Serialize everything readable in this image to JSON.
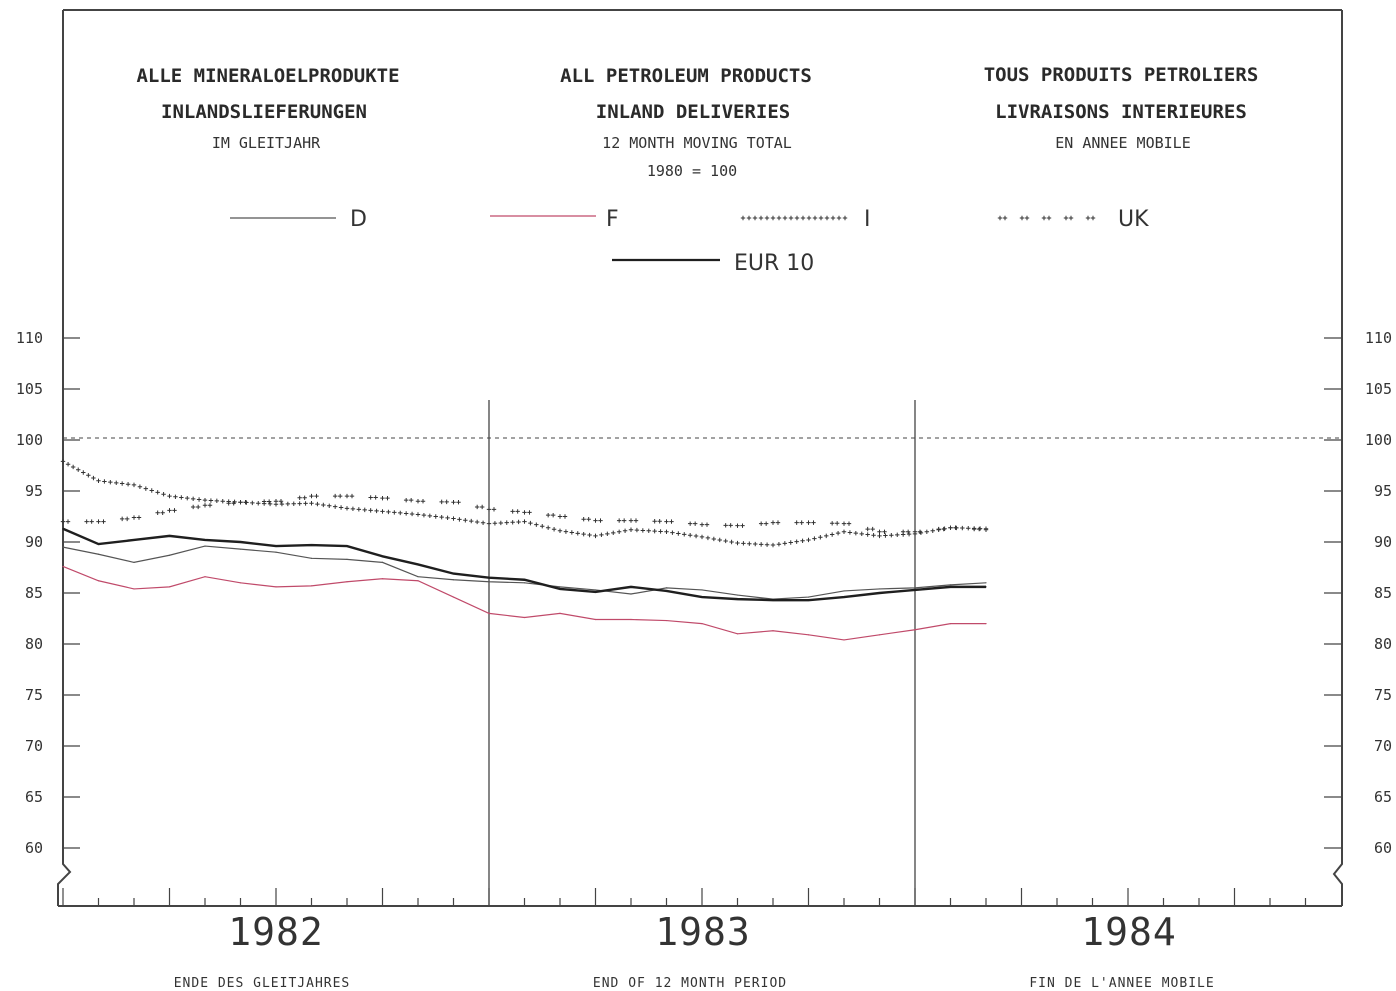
{
  "chart_data": {
    "type": "line",
    "title_de": [
      "ALLE MINERALOELPRODUKTE",
      "INLANDSLIEFERUNGEN",
      "IM GLEITJAHR"
    ],
    "title_en": [
      "ALL PETROLEUM PRODUCTS",
      "INLAND DELIVERIES",
      "12 MONTH MOVING TOTAL"
    ],
    "title_fr": [
      "TOUS PRODUITS PETROLIERS",
      "LIVRAISONS INTERIEURES",
      "EN ANNEE MOBILE"
    ],
    "base_note": "1980 = 100",
    "years": [
      "1982",
      "1983",
      "1984"
    ],
    "xlabel_de": "ENDE DES GLEITJAHRES",
    "xlabel_en": "END OF 12 MONTH PERIOD",
    "xlabel_fr": "FIN DE L'ANNEE MOBILE",
    "ylim": [
      60,
      110
    ],
    "yticks": [
      "110",
      "105",
      "100",
      "95",
      "90",
      "85",
      "80",
      "75",
      "70",
      "65",
      "60"
    ],
    "reference_line": 100,
    "x_months": [
      "1982-01",
      "1982-02",
      "1982-03",
      "1982-04",
      "1982-05",
      "1982-06",
      "1982-07",
      "1982-08",
      "1982-09",
      "1982-10",
      "1982-11",
      "1982-12",
      "1983-01",
      "1983-02",
      "1983-03",
      "1983-04",
      "1983-05",
      "1983-06",
      "1983-07",
      "1983-08",
      "1983-09",
      "1983-10",
      "1983-11",
      "1983-12",
      "1984-01",
      "1984-02",
      "1984-03"
    ],
    "series": [
      {
        "name": "D",
        "color": "#555555",
        "style": "thin",
        "values": [
          89.5,
          88.8,
          88.0,
          88.7,
          89.6,
          89.3,
          89.0,
          88.4,
          88.3,
          88.0,
          86.6,
          86.3,
          86.1,
          86.0,
          85.6,
          85.3,
          84.9,
          85.5,
          85.3,
          84.8,
          84.4,
          84.6,
          85.2,
          85.4,
          85.5,
          85.8,
          86.0
        ]
      },
      {
        "name": "F",
        "color": "#c04a6a",
        "style": "thin",
        "values": [
          87.6,
          86.2,
          85.4,
          85.6,
          86.6,
          86.0,
          85.6,
          85.7,
          86.1,
          86.4,
          86.2,
          84.6,
          83.0,
          82.6,
          83.0,
          82.4,
          82.4,
          82.3,
          82.0,
          81.0,
          81.3,
          80.9,
          80.4,
          80.9,
          81.4,
          82.0,
          82.0
        ]
      },
      {
        "name": "I",
        "color": "#333333",
        "style": "plus",
        "values": [
          97.9,
          96.0,
          95.6,
          94.5,
          94.1,
          93.9,
          93.7,
          93.8,
          93.3,
          93.0,
          92.7,
          92.3,
          91.8,
          92.0,
          91.1,
          90.6,
          91.2,
          91.0,
          90.5,
          89.9,
          89.7,
          90.2,
          91.0,
          90.6,
          90.8,
          91.4,
          91.3
        ]
      },
      {
        "name": "UK",
        "color": "#333333",
        "style": "pairs",
        "values": [
          92.0,
          92.0,
          92.4,
          93.1,
          93.6,
          93.9,
          94.0,
          94.5,
          94.5,
          94.3,
          94.0,
          93.9,
          93.2,
          92.9,
          92.5,
          92.1,
          92.1,
          92.0,
          91.7,
          91.6,
          91.9,
          91.9,
          91.8,
          91.0,
          91.0,
          91.4,
          91.2
        ]
      },
      {
        "name": "EUR 10",
        "color": "#1f1f1f",
        "style": "thick",
        "values": [
          91.3,
          89.8,
          90.2,
          90.6,
          90.2,
          90.0,
          89.6,
          89.7,
          89.6,
          88.6,
          87.8,
          86.9,
          86.5,
          86.3,
          85.4,
          85.1,
          85.6,
          85.2,
          84.6,
          84.4,
          84.3,
          84.3,
          84.6,
          85.0,
          85.3,
          85.6,
          85.6
        ]
      }
    ]
  }
}
